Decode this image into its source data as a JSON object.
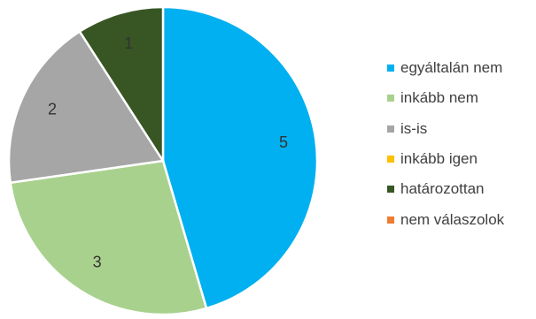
{
  "chart_data": {
    "type": "pie",
    "title": "",
    "categories": [
      "egyáltalán nem",
      "inkább nem",
      "is-is",
      "inkább igen",
      "határozottan",
      "nem válaszolok"
    ],
    "values": [
      5,
      3,
      2,
      0,
      1,
      0
    ],
    "data_labels": [
      "5",
      "3",
      "2",
      "",
      "1",
      ""
    ],
    "colors": [
      "#00B0F0",
      "#A9D18E",
      "#A6A6A6",
      "#FFC000",
      "#375623",
      "#ED7D31"
    ],
    "start_angle_deg": 0,
    "direction": "clockwise",
    "legend_position": "right"
  }
}
